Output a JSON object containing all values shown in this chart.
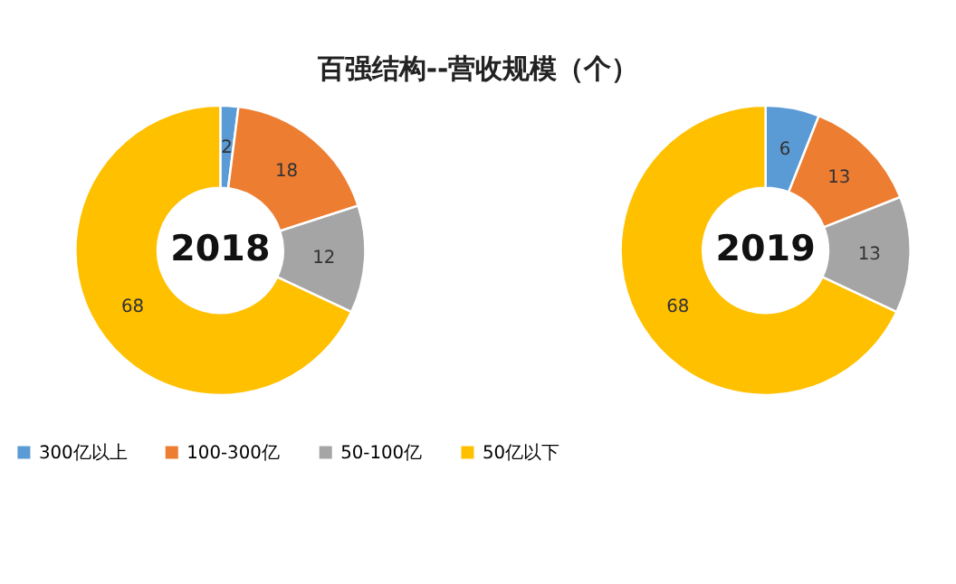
{
  "chart_data": [
    {
      "type": "donut",
      "title": "百强结构--营收规模（个）",
      "annotations": [
        "2018"
      ],
      "categories": [
        "300亿以上",
        "100-300亿",
        "50-100亿",
        "50亿以下"
      ],
      "values": [
        2,
        18,
        12,
        68
      ],
      "colors": [
        "#5b9bd5",
        "#ed7d31",
        "#a5a5a5",
        "#ffc000"
      ],
      "data_labels": true,
      "legend": "bottom"
    },
    {
      "type": "donut",
      "annotations": [
        "2019"
      ],
      "categories": [
        null,
        null,
        null,
        null
      ],
      "values": [
        6,
        13,
        13,
        68
      ],
      "colors": [
        "#5b9bd5",
        "#ed7d31",
        "#a5a5a5",
        "#ffc000"
      ],
      "data_labels": true
    }
  ]
}
